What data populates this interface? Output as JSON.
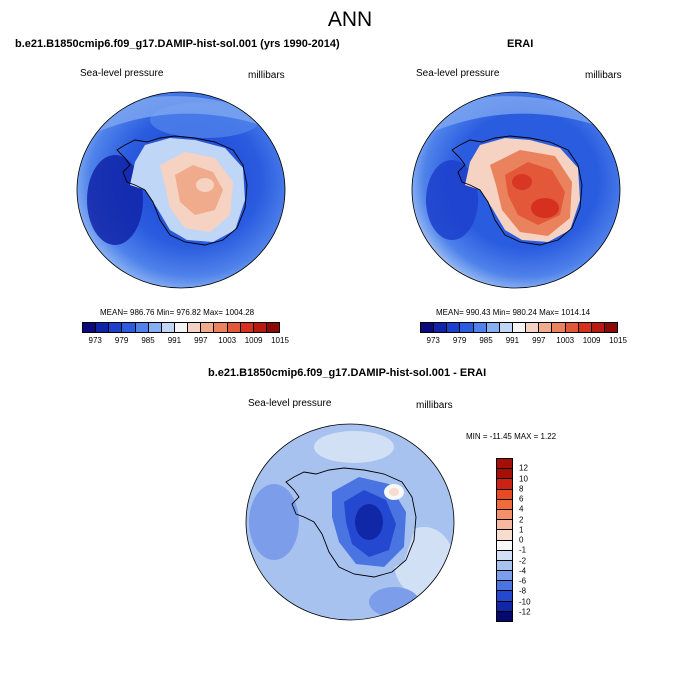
{
  "title": "ANN",
  "panels": [
    {
      "title": "b.e21.B1850cmip6.f09_g17.DAMIP-hist-sol.001 (yrs 1990-2014)",
      "left_label": "Sea-level pressure",
      "right_label": "millibars",
      "stats": "MEAN= 986.76   Min= 976.82   Max= 1004.28"
    },
    {
      "title": "ERAI",
      "left_label": "Sea-level pressure",
      "right_label": "millibars",
      "stats": "MEAN= 990.43   Min= 980.24   Max= 1014.14"
    },
    {
      "title": "b.e21.B1850cmip6.f09_g17.DAMIP-hist-sol.001 - ERAI",
      "left_label": "Sea-level pressure",
      "right_label": "millibars",
      "stats": "MIN = -11.45  MAX =   1.22"
    }
  ],
  "colorbar_top": {
    "ticks": [
      "973",
      "979",
      "985",
      "991",
      "997",
      "1003",
      "1009",
      "1015"
    ],
    "colors": [
      "#0a0a7a",
      "#1024a8",
      "#1c3fcc",
      "#2a5ce0",
      "#4f82ea",
      "#86aef2",
      "#c0d6f6",
      "#f4f4f4",
      "#f6d2c2",
      "#f0aa8c",
      "#ea825e",
      "#e4583a",
      "#d63020",
      "#b81a12",
      "#8a0a06"
    ]
  },
  "colorbar_diff": {
    "ticks": [
      "12",
      "10",
      "8",
      "6",
      "4",
      "2",
      "1",
      "0",
      "-1",
      "-2",
      "-4",
      "-6",
      "-8",
      "-10",
      "-12"
    ],
    "colors": [
      "#a50f08",
      "#cc2214",
      "#e84a24",
      "#f06a3c",
      "#f4916a",
      "#f6b89e",
      "#f8dcd0",
      "#f8f8f8",
      "#d2e0f6",
      "#a8c2f0",
      "#7c9eea",
      "#4a74e2",
      "#2448d0",
      "#1028a8",
      "#06086e"
    ]
  }
}
